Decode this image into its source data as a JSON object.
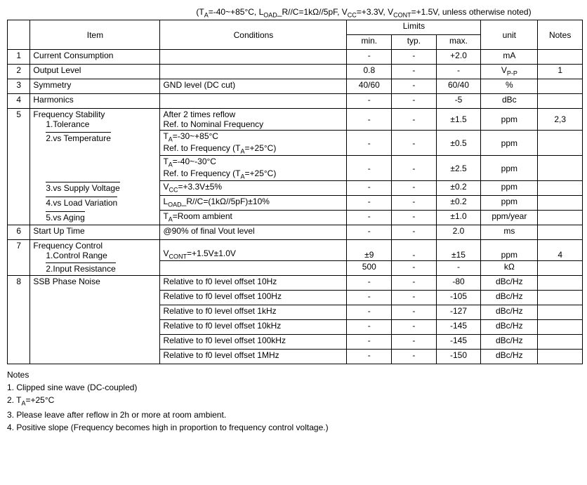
{
  "conditions_header": "(T<sub>A</sub>=-40~+85°C, L<sub>OAD</sub>_R//C=1kΩ//5pF, V<sub>CC</sub>=+3.3V, V<sub>CONT</sub>=+1.5V, unless otherwise noted)",
  "columns": {
    "item": "Item",
    "conditions": "Conditions",
    "limits": "Limits",
    "min": "min.",
    "typ": "typ.",
    "max": "max.",
    "unit": "unit",
    "notes": "Notes"
  },
  "rows": [
    {
      "idx": "1",
      "item": "Current Consumption",
      "cond": "",
      "min": "-",
      "typ": "-",
      "max": "+2.0",
      "unit": "mA",
      "notes": ""
    },
    {
      "idx": "2",
      "item": "Output Level",
      "cond": "",
      "min": "0.8",
      "typ": "-",
      "max": "-",
      "unit": "V<sub>P-P</sub>",
      "notes": "1"
    },
    {
      "idx": "3",
      "item": "Symmetry",
      "cond": "GND level (DC cut)",
      "min": "40/60",
      "typ": "-",
      "max": "60/40",
      "unit": "%",
      "notes": ""
    },
    {
      "idx": "4",
      "item": "Harmonics",
      "cond": "",
      "min": "-",
      "typ": "-",
      "max": "-5",
      "unit": "dBc",
      "notes": ""
    }
  ],
  "row5": {
    "idx": "5",
    "title": "Frequency Stability",
    "sub": [
      {
        "label": "1.Tolerance",
        "cond": "After 2 times reflow<br>Ref. to Nominal Frequency",
        "min": "-",
        "typ": "-",
        "max": "±1.5",
        "unit": "ppm",
        "notes": "2,3"
      },
      {
        "label": "2.vs Temperature",
        "cond": "T<sub>A</sub>=-30~+85°C<br>Ref. to Frequency (T<sub>A</sub>=+25°C)",
        "min": "-",
        "typ": "-",
        "max": "±0.5",
        "unit": "ppm",
        "notes": ""
      },
      {
        "label": "",
        "cond": "T<sub>A</sub>=-40~-30°C<br>Ref. to Frequency (T<sub>A</sub>=+25°C)",
        "min": "-",
        "typ": "-",
        "max": "±2.5",
        "unit": "ppm",
        "notes": ""
      },
      {
        "label": "3.vs Supply Voltage",
        "cond": "V<sub>CC</sub>=+3.3V±5%",
        "min": "-",
        "typ": "-",
        "max": "±0.2",
        "unit": "ppm",
        "notes": ""
      },
      {
        "label": "4.vs Load Variation",
        "cond": "L<sub>OAD</sub>_R//C=(1kΩ//5pF)±10%",
        "min": "-",
        "typ": "-",
        "max": "±0.2",
        "unit": "ppm",
        "notes": ""
      },
      {
        "label": "5.vs Aging",
        "cond": "T<sub>A</sub>=Room ambient",
        "min": "-",
        "typ": "-",
        "max": "±1.0",
        "unit": "ppm/year",
        "notes": ""
      }
    ]
  },
  "row6": {
    "idx": "6",
    "item": "Start Up Time",
    "cond": "@90% of final Vout level",
    "min": "-",
    "typ": "-",
    "max": "2.0",
    "unit": "ms",
    "notes": ""
  },
  "row7": {
    "idx": "7",
    "title": "Frequency Control",
    "sub": [
      {
        "label": "1.Control Range",
        "cond": "V<sub>CONT</sub>=+1.5V±1.0V",
        "min": "±9",
        "typ": "-",
        "max": "±15",
        "unit": "ppm",
        "notes": "4"
      },
      {
        "label": "2.Input Resistance",
        "cond": "",
        "min": "500",
        "typ": "-",
        "max": "-",
        "unit": "kΩ",
        "notes": ""
      }
    ]
  },
  "row8": {
    "idx": "8",
    "title": "SSB Phase Noise",
    "sub": [
      {
        "cond": "Relative to f0 level offset 10Hz",
        "min": "-",
        "typ": "-",
        "max": "-80",
        "unit": "dBc/Hz",
        "notes": ""
      },
      {
        "cond": "Relative to f0 level offset 100Hz",
        "min": "-",
        "typ": "-",
        "max": "-105",
        "unit": "dBc/Hz",
        "notes": ""
      },
      {
        "cond": "Relative to f0 level offset 1kHz",
        "min": "-",
        "typ": "-",
        "max": "-127",
        "unit": "dBc/Hz",
        "notes": ""
      },
      {
        "cond": "Relative to f0 level offset 10kHz",
        "min": "-",
        "typ": "-",
        "max": "-145",
        "unit": "dBc/Hz",
        "notes": ""
      },
      {
        "cond": "Relative to f0 level offset 100kHz",
        "min": "-",
        "typ": "-",
        "max": "-145",
        "unit": "dBc/Hz",
        "notes": ""
      },
      {
        "cond": "Relative to f0 level offset 1MHz",
        "min": "-",
        "typ": "-",
        "max": "-150",
        "unit": "dBc/Hz",
        "notes": ""
      }
    ]
  },
  "notes_title": "Notes",
  "notes": [
    "1. Clipped sine wave (DC-coupled)",
    "2. T<sub>A</sub>=+25°C",
    "3. Please leave after reflow in 2h or more at room ambient.",
    "4. Positive slope (Frequency becomes high in proportion to frequency control voltage.)"
  ],
  "widths": {
    "idx": 28,
    "item": 160,
    "cond": 230,
    "min": 55,
    "typ": 55,
    "max": 55,
    "unit": 70,
    "notes": 55
  }
}
